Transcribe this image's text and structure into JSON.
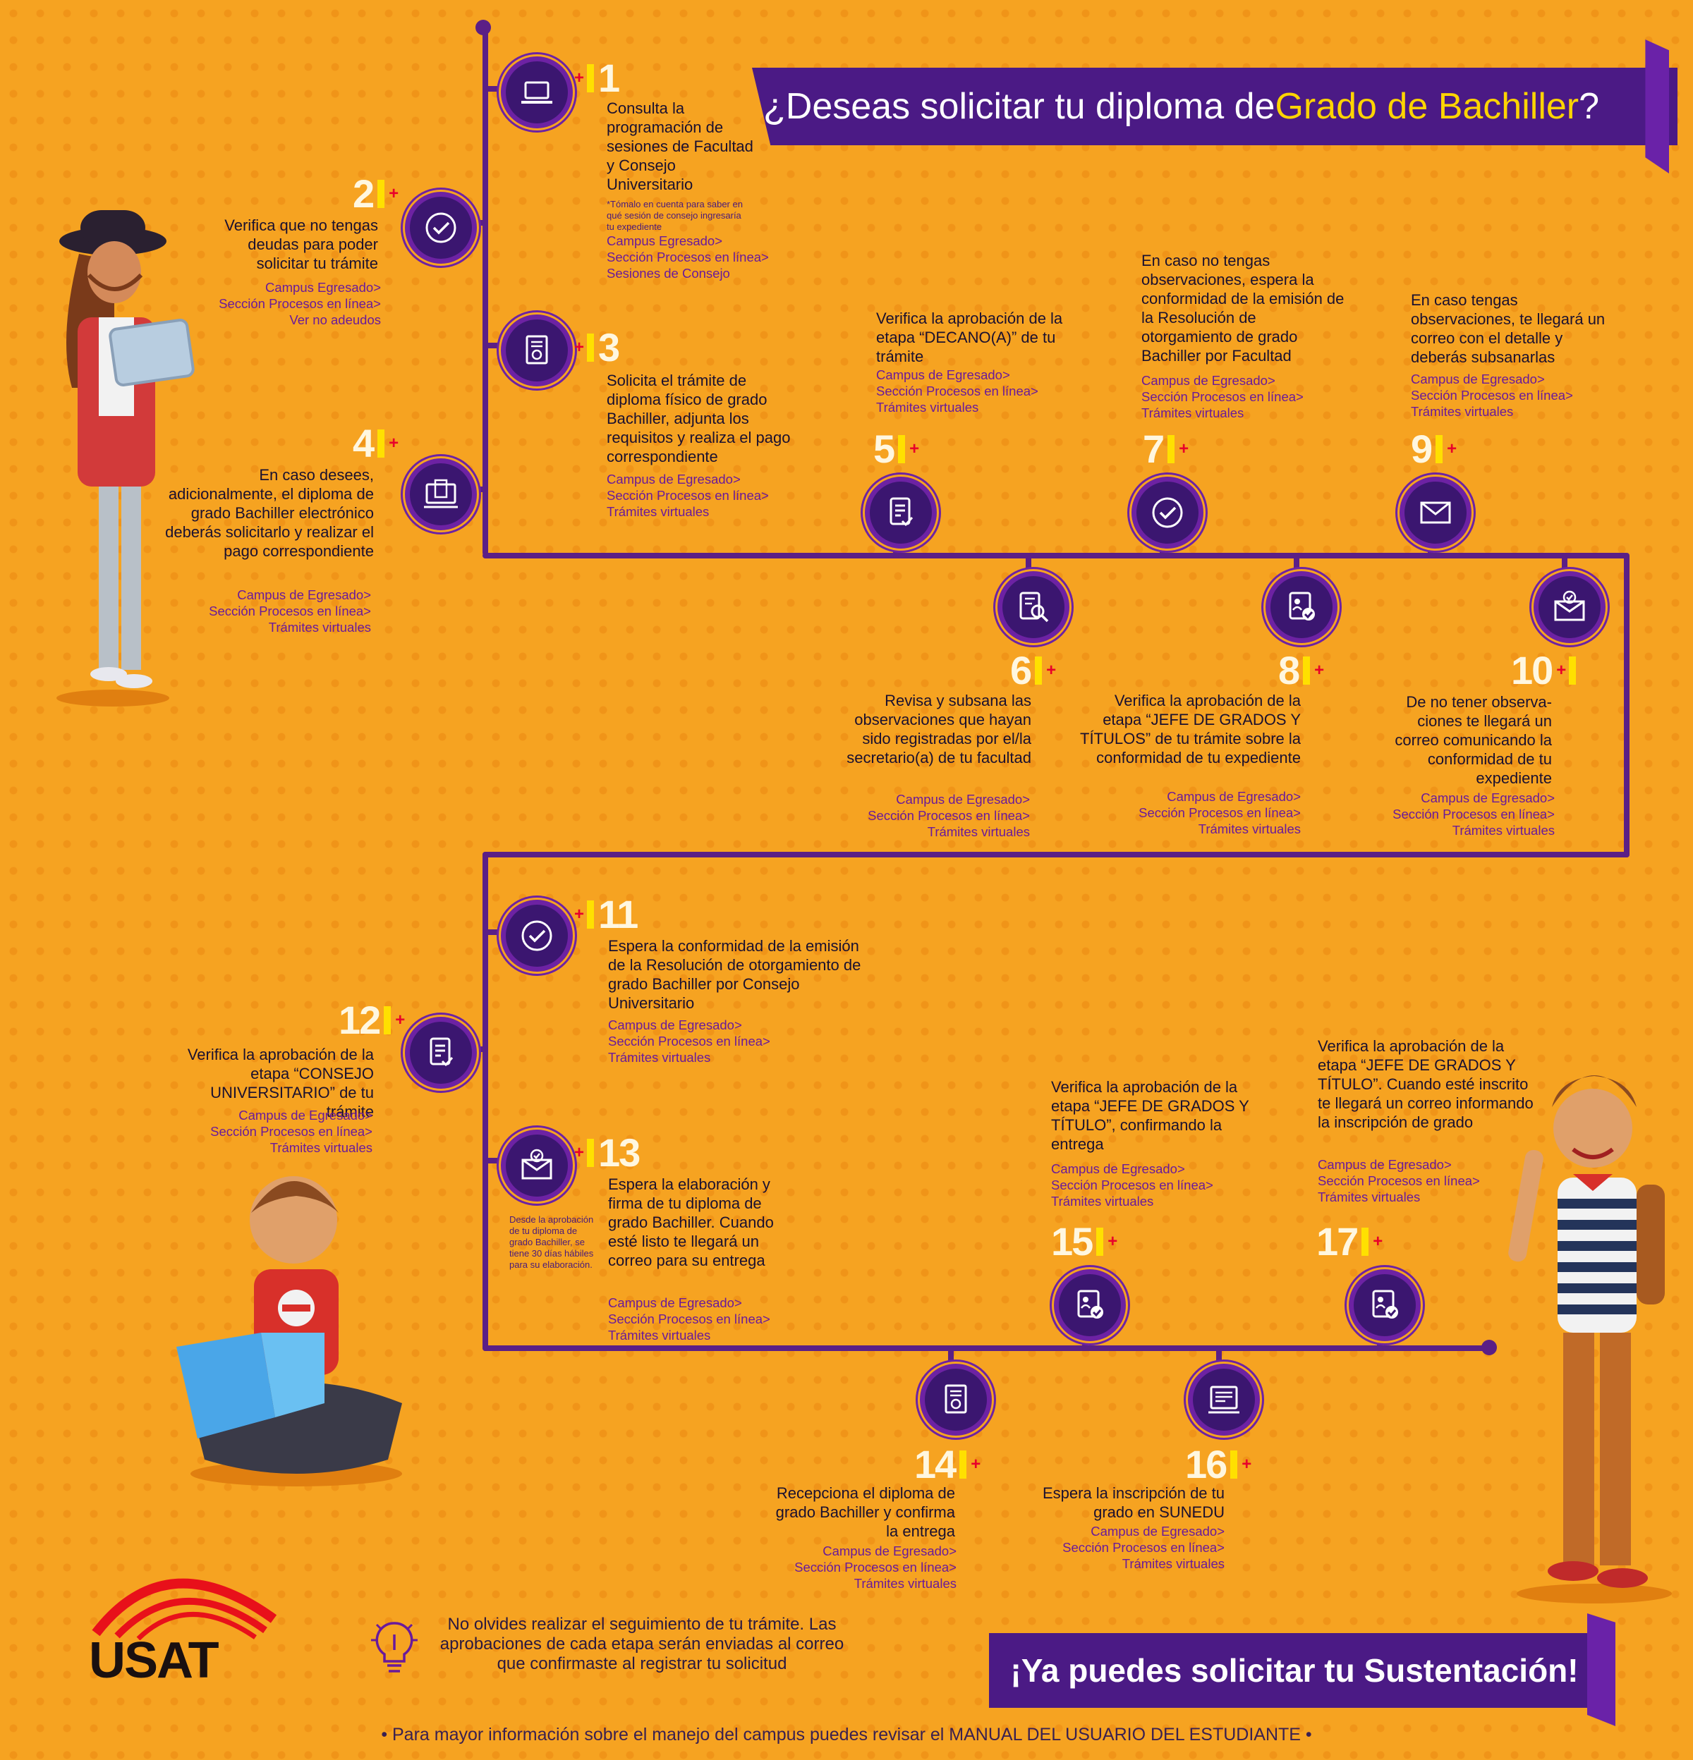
{
  "title": {
    "prefix": "¿Deseas solicitar tu diploma de ",
    "highlight": "Grado de Bachiller",
    "suffix": "?"
  },
  "steps": [
    {
      "n": "1",
      "icon": "laptop-icon",
      "text": "Consulta la programación de sesiones de Facultad y Consejo Universitario",
      "note": "*Tómalo en cuenta para saber en qué sesión de consejo ingresaría tu expediente",
      "links": [
        "Campus Egresado>",
        "Sección Procesos en línea>",
        "Sesiones de Consejo"
      ]
    },
    {
      "n": "2",
      "icon": "check-circle-icon",
      "text": "Verifica que no tengas deudas para poder solicitar tu trámite",
      "links": [
        "Campus Egresado>",
        "Sección Procesos en línea>",
        "Ver no adeudos"
      ]
    },
    {
      "n": "3",
      "icon": "certificate-icon",
      "text": "Solicita el trámite de diploma físico de grado Bachiller, adjunta los requisitos y realiza el pago correspondiente",
      "links": [
        "Campus de Egresado>",
        "Sección Procesos en línea>",
        "Trámites virtuales"
      ]
    },
    {
      "n": "4",
      "icon": "digital-diploma-icon",
      "text": "En caso desees, adicionalmente, el diploma de grado Bachiller electrónico deberás solicitarlo y realizar el pago correspondiente",
      "links": [
        "Campus de Egresado>",
        "Sección Procesos en línea>",
        "Trámites virtuales"
      ]
    },
    {
      "n": "5",
      "icon": "document-check-icon",
      "text": "Verifica la aprobación de la etapa “DECANO(A)” de tu trámite",
      "links": [
        "Campus de Egresado>",
        "Sección Procesos en línea>",
        "Trámites virtuales"
      ]
    },
    {
      "n": "6",
      "icon": "document-search-icon",
      "text": "Revisa y subsana las observaciones que hayan sido registradas por el/la secretario(a) de tu facultad",
      "links": [
        "Campus de Egresado>",
        "Sección Procesos en línea>",
        "Trámites virtuales"
      ]
    },
    {
      "n": "7",
      "icon": "check-circle-icon",
      "text": "En caso no tengas observaciones, espera la conformidad de la emisión de la Resolución de otorgamiento de grado Bachiller por Facultad",
      "links": [
        "Campus de Egresado>",
        "Sección Procesos en línea>",
        "Trámites virtuales"
      ]
    },
    {
      "n": "8",
      "icon": "profile-check-icon",
      "text": "Verifica la aprobación de la etapa “JEFE DE GRADOS Y TÍTULOS” de tu trámite sobre la conformidad de tu expediente",
      "links": [
        "Campus de Egresado>",
        "Sección Procesos en línea>",
        "Trámites virtuales"
      ]
    },
    {
      "n": "9",
      "icon": "mail-icon",
      "text": "En caso tengas observaciones, te llegará un correo con el detalle y deberás subsanarlas",
      "links": [
        "Campus de Egresado>",
        "Sección Procesos en línea>",
        "Trámites virtuales"
      ]
    },
    {
      "n": "10",
      "icon": "mail-check-icon",
      "text": "De no tener observa- ciones te llegará un correo comunicando la conformidad de tu expediente",
      "links": [
        "Campus de Egresado>",
        "Sección Procesos en línea>",
        "Trámites virtuales"
      ]
    },
    {
      "n": "11",
      "icon": "check-circle-icon",
      "text": "Espera la conformidad de la emisión de la Resolución de otorgamiento de grado Bachiller por Consejo Universitario",
      "links": [
        "Campus de Egresado>",
        "Sección Procesos en línea>",
        "Trámites virtuales"
      ]
    },
    {
      "n": "12",
      "icon": "document-check-icon",
      "text": "Verifica la aprobación de la etapa “CONSEJO UNIVERSITARIO” de tu trámite",
      "links": [
        "Campus de Egresado>",
        "Sección Procesos en línea>",
        "Trámites virtuales"
      ]
    },
    {
      "n": "13",
      "icon": "mail-check-icon",
      "text": "Espera la elaboración y firma de tu diploma de grado Bachiller. Cuando esté listo te llegará un correo para su entrega",
      "note": "Desde la aprobación de tu diploma de grado Bachiller, se tiene 30 días hábiles para su elaboración.",
      "links": [
        "Campus de Egresado>",
        "Sección Procesos en línea>",
        "Trámites virtuales"
      ]
    },
    {
      "n": "14",
      "icon": "certificate-icon",
      "text": "Recepciona el diploma de grado Bachiller y confirma la entrega",
      "links": [
        "Campus de Egresado>",
        "Sección Procesos en línea>",
        "Trámites virtuales"
      ]
    },
    {
      "n": "15",
      "icon": "profile-check-icon",
      "text": "Verifica la aprobación de la etapa “JEFE DE GRADOS Y TÍTULO”, confirmando la entrega",
      "links": [
        "Campus de Egresado>",
        "Sección Procesos en línea>",
        "Trámites virtuales"
      ]
    },
    {
      "n": "16",
      "icon": "registry-icon",
      "text": "Espera la inscripción de tu grado en SUNEDU",
      "links": [
        "Campus de Egresado>",
        "Sección Procesos en línea>",
        "Trámites virtuales"
      ]
    },
    {
      "n": "17",
      "icon": "profile-check-icon",
      "text": "Verifica la aprobación de la etapa “JEFE DE GRADOS Y TÍTULO”. Cuando esté inscrito te llegará un correo informando la inscripción de grado",
      "links": [
        "Campus de Egresado>",
        "Sección Procesos en línea>",
        "Trámites virtuales"
      ]
    }
  ],
  "tip": "No olvides realizar el seguimiento de tu trámite. Las aprobaciones de cada etapa serán enviadas al correo que confirmaste al registrar tu solicitud",
  "final_banner": "¡Ya puedes solicitar tu Sustentación!",
  "logo": "USAT",
  "footer": "• Para mayor información sobre el manejo del campus puedes revisar el MANUAL DEL USUARIO DEL ESTUDIANTE •",
  "colors": {
    "background": "#f6a321",
    "purple": "#4b1a85",
    "accent_yellow": "#ffd400",
    "link_purple": "#6a1a9a"
  }
}
